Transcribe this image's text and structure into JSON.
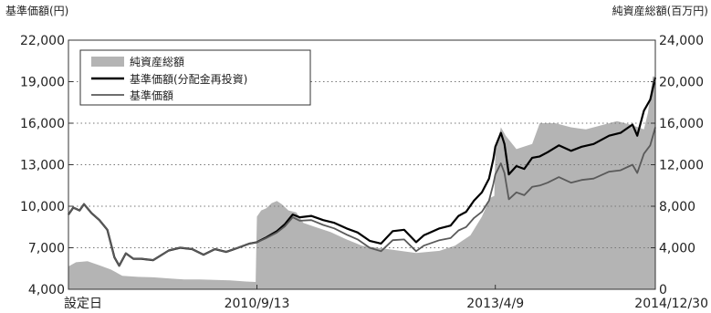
{
  "chart_data": {
    "type": "line",
    "ylabel_left": "基準価額(円)",
    "ylabel_right": "純資産総額(百万円)",
    "ylim_left": [
      4000,
      22000
    ],
    "yticks_left": [
      "4,000",
      "7,000",
      "10,000",
      "13,000",
      "16,000",
      "19,000",
      "22,000"
    ],
    "ylim_right": [
      0,
      24000
    ],
    "yticks_right": [
      "0",
      "4,000",
      "8,000",
      "12,000",
      "16,000",
      "20,000",
      "24,000"
    ],
    "x_range": [
      "2008-09-01",
      "2014-12-30"
    ],
    "xticks": [
      {
        "date": "2008-09-01",
        "label": "設定日"
      },
      {
        "date": "2010-09-13",
        "label": "2010/9/13"
      },
      {
        "date": "2013-04-09",
        "label": "2013/4/9"
      },
      {
        "date": "2014-12-30",
        "label": "2014/12/30"
      }
    ],
    "grid": "horizontal-dotted",
    "legend_position": "top-left",
    "series": [
      {
        "name": "純資産総額",
        "kind": "area",
        "axis": "right",
        "color": "#b4b4b4",
        "points": [
          [
            "2008-09-01",
            2200
          ],
          [
            "2008-10-01",
            2600
          ],
          [
            "2008-11-15",
            2700
          ],
          [
            "2009-01-01",
            2300
          ],
          [
            "2009-02-15",
            1900
          ],
          [
            "2009-04-01",
            1300
          ],
          [
            "2009-06-01",
            1200
          ],
          [
            "2009-08-01",
            1150
          ],
          [
            "2009-10-01",
            1050
          ],
          [
            "2009-12-01",
            950
          ],
          [
            "2010-02-01",
            950
          ],
          [
            "2010-04-01",
            900
          ],
          [
            "2010-06-01",
            850
          ],
          [
            "2010-08-01",
            750
          ],
          [
            "2010-09-08",
            700
          ],
          [
            "2010-09-13",
            7000
          ],
          [
            "2010-09-30",
            7600
          ],
          [
            "2010-10-20",
            7800
          ],
          [
            "2010-11-10",
            8300
          ],
          [
            "2010-12-01",
            8500
          ],
          [
            "2010-12-20",
            8200
          ],
          [
            "2011-01-15",
            7600
          ],
          [
            "2011-02-15",
            7400
          ],
          [
            "2011-03-15",
            6400
          ],
          [
            "2011-05-01",
            6000
          ],
          [
            "2011-07-01",
            5500
          ],
          [
            "2011-09-01",
            4800
          ],
          [
            "2011-11-01",
            4200
          ],
          [
            "2012-01-01",
            4000
          ],
          [
            "2012-03-01",
            3800
          ],
          [
            "2012-06-01",
            3500
          ],
          [
            "2012-09-01",
            3700
          ],
          [
            "2012-11-01",
            4200
          ],
          [
            "2013-01-01",
            5200
          ],
          [
            "2013-02-15",
            7000
          ],
          [
            "2013-03-20",
            8800
          ],
          [
            "2013-04-05",
            9000
          ],
          [
            "2013-04-09",
            13200
          ],
          [
            "2013-05-01",
            15600
          ],
          [
            "2013-05-20",
            14800
          ],
          [
            "2013-07-01",
            13500
          ],
          [
            "2013-09-01",
            14000
          ],
          [
            "2013-10-01",
            16000
          ],
          [
            "2013-12-01",
            16000
          ],
          [
            "2014-02-01",
            15600
          ],
          [
            "2014-04-01",
            15400
          ],
          [
            "2014-06-01",
            15800
          ],
          [
            "2014-08-01",
            16200
          ],
          [
            "2014-10-01",
            15800
          ],
          [
            "2014-11-15",
            15400
          ],
          [
            "2014-12-01",
            17000
          ],
          [
            "2014-12-20",
            20500
          ],
          [
            "2014-12-30",
            20500
          ]
        ]
      },
      {
        "name": "基準価額(分配金再投資)",
        "kind": "line",
        "axis": "left",
        "color": "#000000",
        "points": [
          [
            "2008-09-01",
            9400
          ],
          [
            "2008-09-20",
            9900
          ],
          [
            "2008-10-15",
            9700
          ],
          [
            "2008-11-01",
            10150
          ],
          [
            "2008-12-01",
            9500
          ],
          [
            "2009-01-01",
            9000
          ],
          [
            "2009-02-01",
            8300
          ],
          [
            "2009-03-01",
            6300
          ],
          [
            "2009-03-20",
            5700
          ],
          [
            "2009-04-15",
            6600
          ],
          [
            "2009-05-15",
            6200
          ],
          [
            "2009-06-15",
            6200
          ],
          [
            "2009-08-01",
            6100
          ],
          [
            "2009-10-01",
            6800
          ],
          [
            "2009-11-15",
            7000
          ],
          [
            "2010-01-01",
            6900
          ],
          [
            "2010-02-15",
            6500
          ],
          [
            "2010-04-01",
            6900
          ],
          [
            "2010-05-15",
            6700
          ],
          [
            "2010-07-01",
            7000
          ],
          [
            "2010-08-15",
            7300
          ],
          [
            "2010-09-13",
            7400
          ],
          [
            "2010-10-15",
            7700
          ],
          [
            "2010-12-01",
            8200
          ],
          [
            "2011-01-01",
            8700
          ],
          [
            "2011-02-01",
            9400
          ],
          [
            "2011-03-01",
            9200
          ],
          [
            "2011-04-15",
            9300
          ],
          [
            "2011-06-01",
            9000
          ],
          [
            "2011-07-15",
            8800
          ],
          [
            "2011-09-01",
            8400
          ],
          [
            "2011-10-15",
            8100
          ],
          [
            "2011-12-01",
            7500
          ],
          [
            "2012-01-15",
            7300
          ],
          [
            "2012-03-01",
            8200
          ],
          [
            "2012-04-15",
            8300
          ],
          [
            "2012-06-01",
            7400
          ],
          [
            "2012-07-01",
            7900
          ],
          [
            "2012-09-01",
            8400
          ],
          [
            "2012-10-15",
            8600
          ],
          [
            "2012-11-15",
            9300
          ],
          [
            "2012-12-15",
            9600
          ],
          [
            "2013-01-15",
            10400
          ],
          [
            "2013-02-15",
            11000
          ],
          [
            "2013-03-15",
            12000
          ],
          [
            "2013-04-01",
            13400
          ],
          [
            "2013-04-09",
            14300
          ],
          [
            "2013-05-01",
            15300
          ],
          [
            "2013-05-15",
            14500
          ],
          [
            "2013-06-01",
            12300
          ],
          [
            "2013-07-01",
            12900
          ],
          [
            "2013-08-01",
            12700
          ],
          [
            "2013-09-01",
            13500
          ],
          [
            "2013-10-01",
            13600
          ],
          [
            "2013-11-01",
            13900
          ],
          [
            "2013-12-15",
            14400
          ],
          [
            "2014-02-01",
            14000
          ],
          [
            "2014-03-15",
            14300
          ],
          [
            "2014-05-01",
            14500
          ],
          [
            "2014-07-01",
            15100
          ],
          [
            "2014-08-15",
            15300
          ],
          [
            "2014-10-01",
            15900
          ],
          [
            "2014-10-20",
            15100
          ],
          [
            "2014-11-15",
            16900
          ],
          [
            "2014-12-10",
            17700
          ],
          [
            "2014-12-30",
            19300
          ]
        ]
      },
      {
        "name": "基準価額",
        "kind": "line",
        "axis": "left",
        "color": "#5a5a5a",
        "points": [
          [
            "2008-09-01",
            9400
          ],
          [
            "2008-09-20",
            9900
          ],
          [
            "2008-10-15",
            9700
          ],
          [
            "2008-11-01",
            10150
          ],
          [
            "2008-12-01",
            9500
          ],
          [
            "2009-01-01",
            9000
          ],
          [
            "2009-02-01",
            8300
          ],
          [
            "2009-03-01",
            6300
          ],
          [
            "2009-03-20",
            5700
          ],
          [
            "2009-04-15",
            6600
          ],
          [
            "2009-05-15",
            6200
          ],
          [
            "2009-06-15",
            6200
          ],
          [
            "2009-08-01",
            6100
          ],
          [
            "2009-10-01",
            6800
          ],
          [
            "2009-11-15",
            7000
          ],
          [
            "2010-01-01",
            6900
          ],
          [
            "2010-02-15",
            6500
          ],
          [
            "2010-04-01",
            6900
          ],
          [
            "2010-05-15",
            6700
          ],
          [
            "2010-07-01",
            7000
          ],
          [
            "2010-08-15",
            7300
          ],
          [
            "2010-09-13",
            7400
          ],
          [
            "2010-10-15",
            7650
          ],
          [
            "2010-12-01",
            8100
          ],
          [
            "2011-01-01",
            8550
          ],
          [
            "2011-02-01",
            9200
          ],
          [
            "2011-03-01",
            8950
          ],
          [
            "2011-04-15",
            9000
          ],
          [
            "2011-06-01",
            8650
          ],
          [
            "2011-07-15",
            8400
          ],
          [
            "2011-09-01",
            7950
          ],
          [
            "2011-10-15",
            7600
          ],
          [
            "2011-12-01",
            7000
          ],
          [
            "2012-01-15",
            6750
          ],
          [
            "2012-03-01",
            7550
          ],
          [
            "2012-04-15",
            7600
          ],
          [
            "2012-06-01",
            6750
          ],
          [
            "2012-07-01",
            7150
          ],
          [
            "2012-09-01",
            7550
          ],
          [
            "2012-10-15",
            7700
          ],
          [
            "2012-11-15",
            8250
          ],
          [
            "2012-12-15",
            8500
          ],
          [
            "2013-01-15",
            9150
          ],
          [
            "2013-02-15",
            9600
          ],
          [
            "2013-03-15",
            10400
          ],
          [
            "2013-04-01",
            11600
          ],
          [
            "2013-04-09",
            12300
          ],
          [
            "2013-05-01",
            13100
          ],
          [
            "2013-05-15",
            12400
          ],
          [
            "2013-06-01",
            10500
          ],
          [
            "2013-07-01",
            11000
          ],
          [
            "2013-08-01",
            10800
          ],
          [
            "2013-09-01",
            11400
          ],
          [
            "2013-10-01",
            11500
          ],
          [
            "2013-11-01",
            11700
          ],
          [
            "2013-12-15",
            12100
          ],
          [
            "2014-02-01",
            11700
          ],
          [
            "2014-03-15",
            11900
          ],
          [
            "2014-05-01",
            12000
          ],
          [
            "2014-07-01",
            12500
          ],
          [
            "2014-08-15",
            12600
          ],
          [
            "2014-10-01",
            13000
          ],
          [
            "2014-10-20",
            12400
          ],
          [
            "2014-11-15",
            13800
          ],
          [
            "2014-12-10",
            14400
          ],
          [
            "2014-12-30",
            15700
          ]
        ]
      }
    ]
  }
}
